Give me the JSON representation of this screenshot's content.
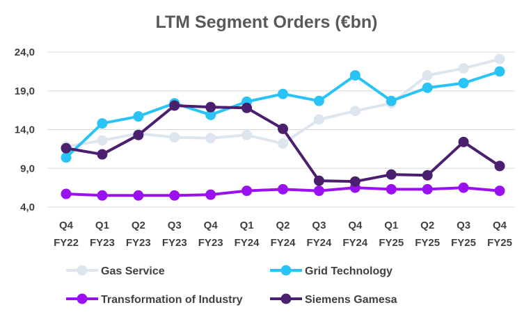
{
  "chart_data": {
    "type": "line",
    "title": "LTM Segment Orders (€bn)",
    "xlabel": "",
    "ylabel": "",
    "ylim": [
      4.0,
      24.0
    ],
    "yticks": [
      "4,0",
      "9,0",
      "14,0",
      "19,0",
      "24,0"
    ],
    "ytick_values": [
      4,
      9,
      14,
      19,
      24
    ],
    "grid": true,
    "legend_position": "bottom",
    "categories": [
      [
        "Q4",
        "FY22"
      ],
      [
        "Q1",
        "FY23"
      ],
      [
        "Q2",
        "FY23"
      ],
      [
        "Q3",
        "FY23"
      ],
      [
        "Q4",
        "FY23"
      ],
      [
        "Q1",
        "FY24"
      ],
      [
        "Q2",
        "FY24"
      ],
      [
        "Q3",
        "FY24"
      ],
      [
        "Q4",
        "FY24"
      ],
      [
        "Q1",
        "FY25"
      ],
      [
        "Q2",
        "FY25"
      ],
      [
        "Q3",
        "FY25"
      ],
      [
        "Q4",
        "FY25"
      ]
    ],
    "series": [
      {
        "name": "Gas Service",
        "color": "#dde5ee",
        "values": [
          11.8,
          12.6,
          13.5,
          13.0,
          12.9,
          13.3,
          12.2,
          15.3,
          16.4,
          17.4,
          21.0,
          21.9,
          23.1
        ]
      },
      {
        "name": "Grid Technology",
        "color": "#29c3f5",
        "values": [
          10.4,
          14.8,
          15.7,
          17.4,
          15.9,
          17.6,
          18.6,
          17.7,
          21.0,
          17.7,
          19.4,
          20.0,
          21.5
        ]
      },
      {
        "name": "Transformation of Industry",
        "color": "#9a10f0",
        "values": [
          5.7,
          5.5,
          5.5,
          5.5,
          5.6,
          6.1,
          6.3,
          6.1,
          6.5,
          6.3,
          6.3,
          6.5,
          6.1
        ]
      },
      {
        "name": "Siemens Gamesa",
        "color": "#4a1f6e",
        "values": [
          11.6,
          10.8,
          13.3,
          17.1,
          16.9,
          16.8,
          14.1,
          7.4,
          7.3,
          8.2,
          8.1,
          12.4,
          9.3
        ]
      }
    ]
  }
}
